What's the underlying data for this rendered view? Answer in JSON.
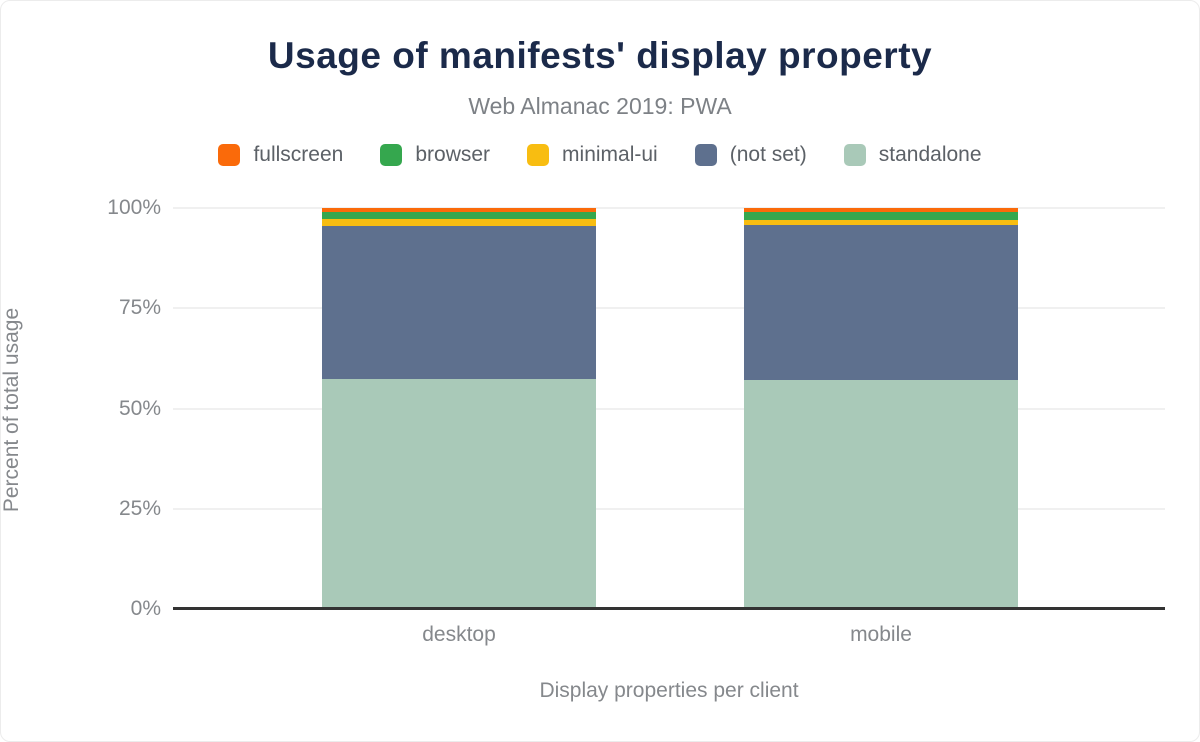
{
  "chart_data": {
    "type": "bar",
    "stacked": true,
    "title": "Usage of manifests' display property",
    "subtitle": "Web Almanac 2019: PWA",
    "categories": [
      "desktop",
      "mobile"
    ],
    "series": [
      {
        "name": "fullscreen",
        "color": "#fa6a0a",
        "values": [
          1.0,
          1.0
        ]
      },
      {
        "name": "browser",
        "color": "#35a74e",
        "values": [
          1.8,
          2.0
        ]
      },
      {
        "name": "minimal-ui",
        "color": "#f8bd11",
        "values": [
          1.7,
          1.3
        ]
      },
      {
        "name": "(not set)",
        "color": "#5e708e",
        "values": [
          38.2,
          38.6
        ]
      },
      {
        "name": "standalone",
        "color": "#a9c9b8",
        "values": [
          57.3,
          57.1
        ]
      }
    ],
    "xlabel": "Display properties per client",
    "ylabel": "Percent of total usage",
    "ylim": [
      0,
      100
    ],
    "yticks": [
      0,
      25,
      50,
      75,
      100
    ],
    "ytick_labels": [
      "0%",
      "25%",
      "50%",
      "75%",
      "100%"
    ],
    "legend_position": "top",
    "grid": true
  },
  "colors": {
    "title_text": "#1b2a4a",
    "muted_text": "#85888c",
    "legend_text": "#5c6167",
    "gridline": "#f0f0f0",
    "axis_line": "#333333",
    "background": "#ffffff"
  }
}
